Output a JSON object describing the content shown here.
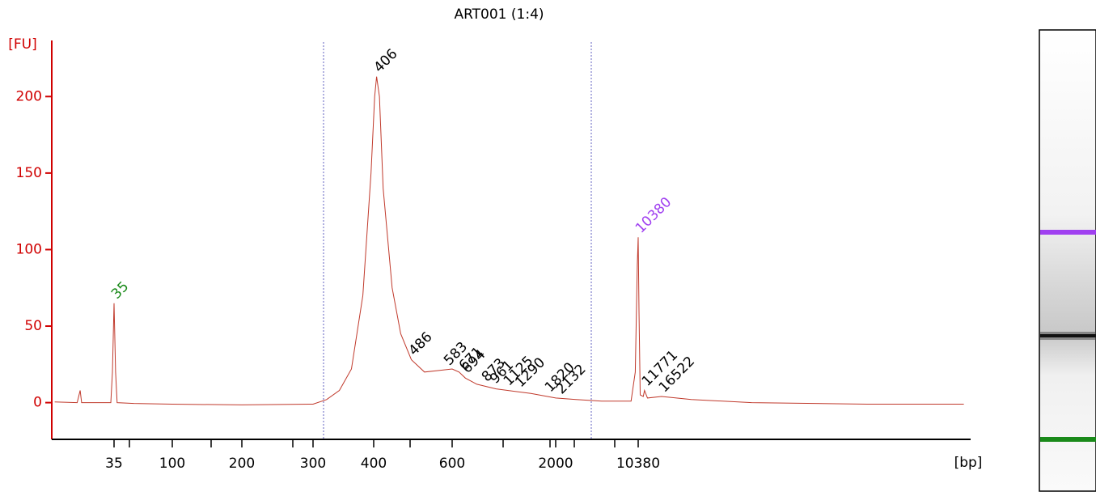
{
  "chart_data": {
    "type": "electropherogram",
    "title": "ART001 (1:4)",
    "y_label": "[FU]",
    "x_label": "[bp]",
    "ylim": [
      -24,
      234
    ],
    "yticks": [
      0,
      50,
      100,
      150,
      200
    ],
    "xticks": [
      35,
      100,
      200,
      300,
      400,
      600,
      2000,
      10380
    ],
    "color": "#c0392b",
    "axis_color": "#d00000",
    "x": [
      12,
      18,
      19,
      19.5,
      30,
      33,
      34,
      35,
      36,
      37,
      50,
      100,
      200,
      300,
      320,
      340,
      360,
      380,
      395,
      402,
      406,
      412,
      420,
      440,
      460,
      486,
      520,
      560,
      600,
      650,
      700,
      800,
      1000,
      1500,
      2000,
      3000,
      5000,
      9000,
      9800,
      10200,
      10380,
      10550,
      10800,
      11500,
      11771,
      12500,
      16522,
      30000,
      100000,
      1000000,
      6900000
    ],
    "values": [
      0.5,
      0,
      8,
      0,
      0,
      0,
      20,
      65,
      20,
      0,
      -0.5,
      -1,
      -1.5,
      -1,
      2,
      8,
      22,
      70,
      150,
      200,
      213,
      200,
      140,
      75,
      45,
      28,
      20,
      21,
      22,
      20,
      16,
      12,
      9,
      6,
      3,
      2,
      1,
      1,
      20,
      90,
      108,
      60,
      5,
      4,
      8,
      3,
      4,
      2,
      0,
      -1,
      -1
    ],
    "peaks": [
      35,
      406,
      486,
      583,
      671,
      694,
      873,
      961,
      1125,
      1290,
      1820,
      2132,
      10380,
      11771,
      16522
    ],
    "lower_marker": {
      "size": 35,
      "color": "#1a8a1a"
    },
    "upper_marker": {
      "size": 10380,
      "color": "#a040f0"
    }
  }
}
